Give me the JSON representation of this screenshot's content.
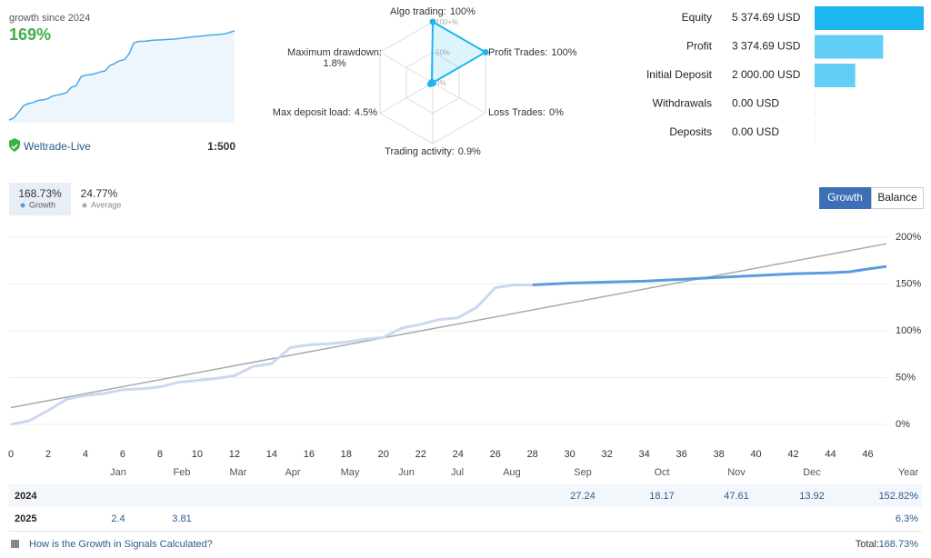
{
  "header": {
    "growth_label": "growth since 2024",
    "growth_value": "169%",
    "account": "Weltrade-Live",
    "leverage": "1:500"
  },
  "radar": {
    "rlim": [
      0,
      100
    ],
    "rticks": [
      {
        "value": 100,
        "label": "100+%"
      },
      {
        "value": 50,
        "label": "50%"
      },
      {
        "value": 0,
        "label": "0%"
      }
    ],
    "axes": [
      {
        "name": "Algo trading:",
        "value_label": "100%",
        "value": 100
      },
      {
        "name": "Profit Trades:",
        "value_label": "100%",
        "value": 100
      },
      {
        "name": "Loss Trades:",
        "value_label": "0%",
        "value": 0
      },
      {
        "name": "Trading activity:",
        "value_label": "0.9%",
        "value": 0.9
      },
      {
        "name": "Max deposit load:",
        "value_label": "4.5%",
        "value": 4.5
      },
      {
        "name": "Maximum drawdown:",
        "value_label": "1.8%",
        "value": 1.8
      }
    ],
    "color": "#1fb5ef"
  },
  "balances": [
    {
      "label": "Equity",
      "value": 5374.69,
      "value_label": "5 374.69 USD",
      "color": "#1cb6f0"
    },
    {
      "label": "Profit",
      "value": 3374.69,
      "value_label": "3 374.69 USD",
      "color": "#62cdf5"
    },
    {
      "label": "Initial Deposit",
      "value": 2000,
      "value_label": "2 000.00 USD",
      "color": "#62cdf5"
    },
    {
      "label": "Withdrawals",
      "value": 0,
      "value_label": "0.00 USD",
      "color": "#62cdf5"
    },
    {
      "label": "Deposits",
      "value": 0,
      "value_label": "0.00 USD",
      "color": "#62cdf5"
    }
  ],
  "tabs": [
    {
      "value": "168.73%",
      "label": "Growth"
    },
    {
      "value": "24.77%",
      "label": "Average"
    }
  ],
  "buttons": [
    "Growth",
    "Balance"
  ],
  "growth_chart": {
    "type": "line",
    "x": [
      0,
      1,
      2,
      3,
      4,
      5,
      6,
      7,
      8,
      9,
      10,
      11,
      12,
      13,
      14,
      15,
      16,
      17,
      18,
      19,
      20,
      21,
      22,
      23,
      24,
      25,
      26,
      27,
      28,
      29,
      30,
      31,
      32,
      33,
      34,
      35,
      36,
      37,
      38,
      39,
      40,
      41,
      42,
      43,
      44,
      45,
      46,
      47
    ],
    "series": [
      {
        "name": "Growth",
        "color": "#ccd8f2",
        "values": [
          0,
          4,
          15,
          27,
          31,
          33,
          37,
          38,
          40,
          45,
          47,
          49,
          52,
          62,
          65,
          82,
          85,
          86,
          88,
          91,
          93,
          103,
          107,
          112,
          114,
          125,
          146,
          149,
          149,
          null,
          null,
          null,
          null,
          null,
          null,
          null,
          null,
          null,
          null,
          null,
          null,
          null,
          null,
          null,
          null,
          null,
          null,
          null
        ]
      },
      {
        "color": "#5b9be0",
        "values": [
          null,
          null,
          null,
          null,
          null,
          null,
          null,
          null,
          null,
          null,
          null,
          null,
          null,
          null,
          null,
          null,
          null,
          null,
          null,
          null,
          null,
          null,
          null,
          null,
          null,
          null,
          null,
          null,
          149,
          150,
          151,
          151.5,
          152,
          152.5,
          153,
          154,
          155,
          156,
          157,
          158,
          159,
          160,
          161,
          161.5,
          162,
          163,
          166,
          168.73
        ]
      }
    ],
    "trend": {
      "name": "Average",
      "color": "#aaaaaa",
      "x": [
        0,
        47
      ],
      "values": [
        18,
        193
      ]
    },
    "xlim": [
      0,
      47
    ],
    "xticks": [
      0,
      2,
      4,
      6,
      8,
      10,
      12,
      14,
      16,
      18,
      20,
      22,
      24,
      26,
      28,
      30,
      32,
      34,
      36,
      38,
      40,
      42,
      44,
      46
    ],
    "ylim": [
      0,
      200
    ],
    "yticks": [
      {
        "value": 0,
        "label": "0%"
      },
      {
        "value": 50,
        "label": "50%"
      },
      {
        "value": 100,
        "label": "100%"
      },
      {
        "value": 150,
        "label": "150%"
      },
      {
        "value": 200,
        "label": "200%"
      }
    ],
    "grid": true
  },
  "monthly_table": {
    "columns": [
      "Jan",
      "Feb",
      "Mar",
      "Apr",
      "May",
      "Jun",
      "Jul",
      "Aug",
      "Sep",
      "Oct",
      "Nov",
      "Dec",
      "Year"
    ],
    "rows": [
      {
        "label": "2024",
        "cells": [
          null,
          null,
          null,
          null,
          null,
          null,
          null,
          null,
          27.24,
          18.17,
          47.61,
          13.92,
          "152.82%"
        ]
      },
      {
        "label": "2025",
        "cells": [
          2.4,
          3.81,
          null,
          null,
          null,
          null,
          null,
          null,
          null,
          null,
          null,
          null,
          "6.3%"
        ]
      }
    ]
  },
  "footer": {
    "link": "How is the Growth in Signals Calculated?",
    "total_label": "Total:",
    "total_value": "168.73%"
  }
}
